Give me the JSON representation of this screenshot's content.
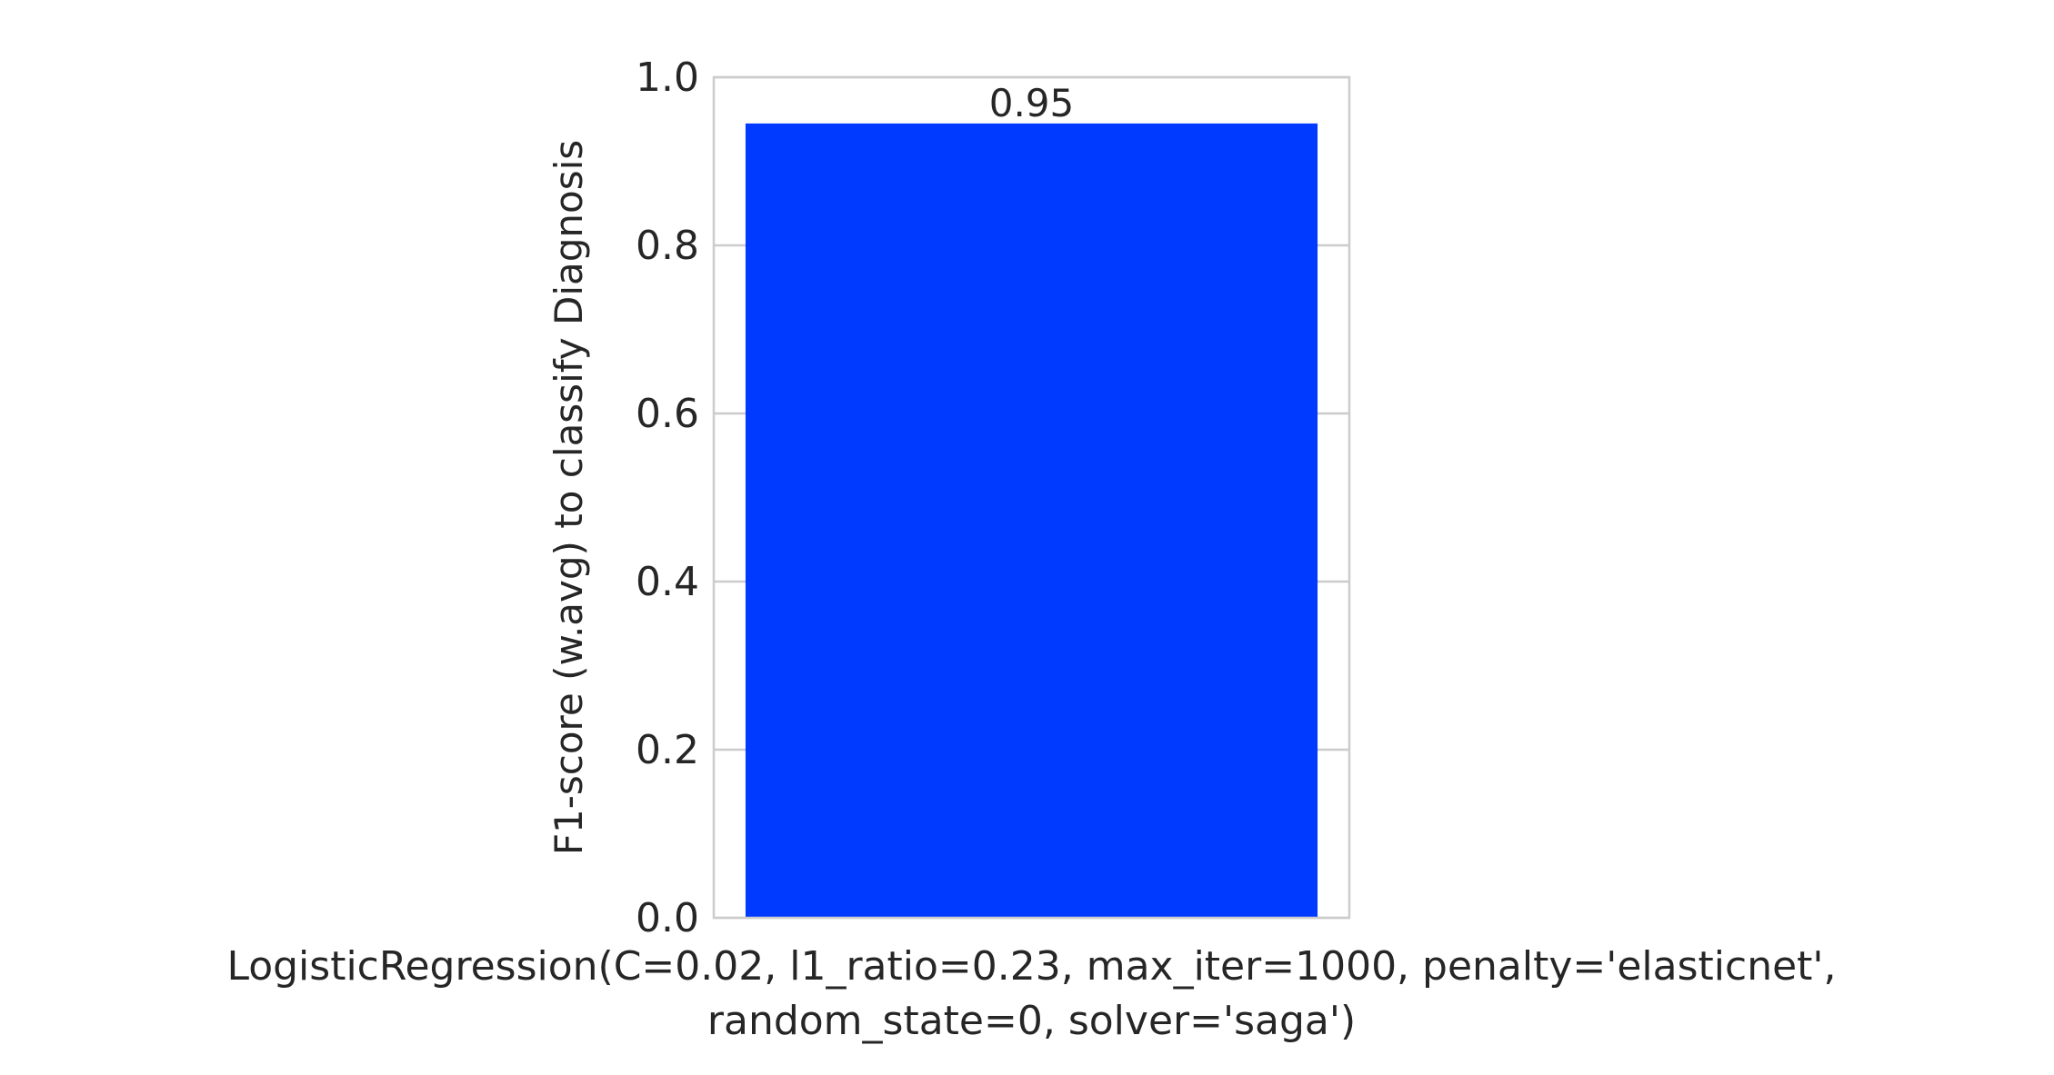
{
  "chart_data": {
    "type": "bar",
    "categories": [
      "LogisticRegression(C=0.02, l1_ratio=0.23, max_iter=1000, penalty='elasticnet',\nrandom_state=0, solver='saga')"
    ],
    "values": [
      0.945
    ],
    "data_labels": [
      "0.95"
    ],
    "title": "",
    "xlabel": "",
    "ylabel": "F1-score (w.avg) to classify Diagnosis",
    "ylim": [
      0,
      1.0
    ],
    "yticks": [
      0.0,
      0.2,
      0.4,
      0.6,
      0.8,
      1.0
    ],
    "ytick_labels": [
      "0.0",
      "0.2",
      "0.4",
      "0.6",
      "0.8",
      "1.0"
    ],
    "grid": true,
    "legend": "none",
    "colors": {
      "bar": "#0039FF",
      "axes_edge": "#CCCCCC",
      "grid": "#CCCCCC",
      "text": "#262626"
    }
  }
}
